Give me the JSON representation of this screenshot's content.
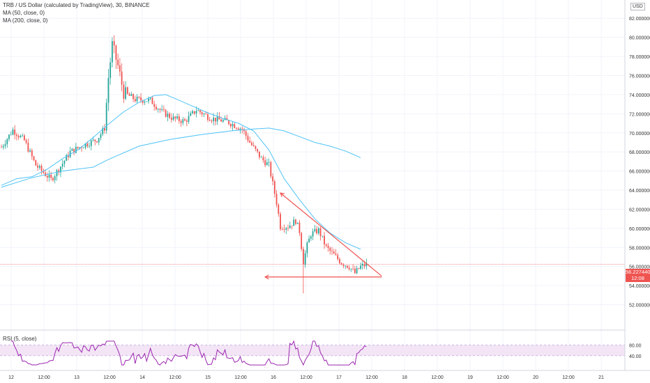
{
  "header": {
    "title": "TRB / US Dollar (calculated by TradingView), 30, BINANCE",
    "ma50": "MA (50, close, 0)",
    "ma200": "MA (200, close, 0)",
    "rsi": "RSI (5, close)",
    "currency": "USD"
  },
  "price_tag": {
    "price": "56.227440",
    "countdown": "12:08"
  },
  "colors": {
    "up": "#26a69a",
    "down": "#ef5350",
    "ma": "#4fc3f7",
    "rsi_line": "#9c27b0",
    "rsi_band": "#f3e5f5",
    "trendline": "#ef5350"
  },
  "chart_data": {
    "type": "candlestick",
    "title": "TRB / US Dollar (calculated by TradingView), 30, BINANCE",
    "y_ticks": [
      "82.000000",
      "80.000000",
      "78.000000",
      "76.000000",
      "74.000000",
      "72.000000",
      "70.000000",
      "68.000000",
      "66.000000",
      "64.000000",
      "62.000000",
      "60.000000",
      "58.000000",
      "56.000000",
      "54.000000",
      "52.000000"
    ],
    "x_ticks": [
      "12",
      "12:00",
      "13",
      "12:00",
      "14",
      "12:00",
      "15",
      "12:00",
      "16",
      "12:00",
      "17",
      "12:00",
      "18",
      "12:00",
      "19",
      "12:00",
      "20",
      "12:00",
      "21"
    ],
    "ylim": [
      50.8,
      82.6
    ],
    "ma50_points": [
      [
        0,
        64.5
      ],
      [
        8,
        65.2
      ],
      [
        16,
        65.4
      ],
      [
        24,
        66.2
      ],
      [
        32,
        67.3
      ],
      [
        40,
        68.2
      ],
      [
        48,
        69.5
      ],
      [
        56,
        70.9
      ],
      [
        64,
        72.2
      ],
      [
        72,
        73.2
      ],
      [
        80,
        73.9
      ],
      [
        86,
        74.0
      ],
      [
        92,
        73.5
      ],
      [
        100,
        72.8
      ],
      [
        108,
        72.1
      ],
      [
        116,
        71.5
      ],
      [
        124,
        71.0
      ],
      [
        132,
        70.2
      ],
      [
        140,
        68.2
      ],
      [
        148,
        65.2
      ],
      [
        156,
        63.0
      ],
      [
        164,
        61.0
      ],
      [
        172,
        59.5
      ],
      [
        180,
        58.5
      ],
      [
        188,
        57.8
      ]
    ],
    "ma200_points": [
      [
        0,
        64.3
      ],
      [
        16,
        65.3
      ],
      [
        32,
        66.0
      ],
      [
        48,
        66.4
      ],
      [
        56,
        67.2
      ],
      [
        72,
        68.6
      ],
      [
        88,
        69.3
      ],
      [
        104,
        69.8
      ],
      [
        120,
        70.2
      ],
      [
        132,
        70.4
      ],
      [
        140,
        70.5
      ],
      [
        148,
        70.2
      ],
      [
        156,
        69.6
      ],
      [
        164,
        69.0
      ],
      [
        172,
        68.6
      ],
      [
        180,
        68.1
      ],
      [
        188,
        67.4
      ]
    ],
    "key_levels": {
      "pre_pump_high": 71,
      "peak_high": 80.0,
      "breakdown_low": 53.2,
      "last": 56.23
    },
    "rsi_levels": [
      80,
      40
    ],
    "rsi_ticks": [
      "80.00",
      "40.00"
    ],
    "trendlines": [
      {
        "name": "descending resistance",
        "from": [
          146,
          63.7
        ],
        "to": [
          199,
          55.0
        ]
      },
      {
        "name": "horizontal support",
        "from": [
          138,
          54.9
        ],
        "to": [
          199,
          54.9
        ]
      }
    ]
  }
}
